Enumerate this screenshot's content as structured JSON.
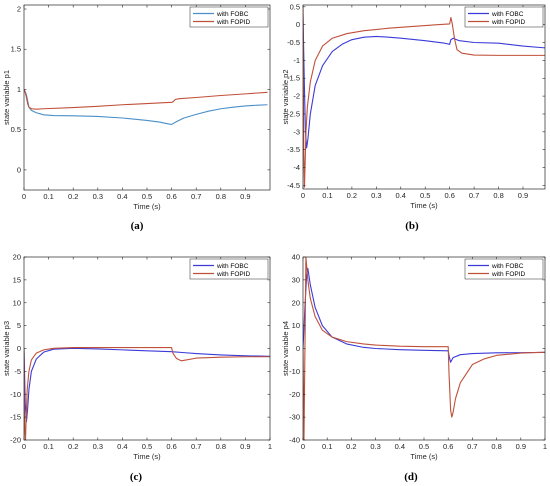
{
  "colors": {
    "fobc": "#0072BD",
    "fopid": "#A2321C",
    "axis": "#262626",
    "grid_none": "#ffffff"
  },
  "chart_data": [
    {
      "type": "line",
      "caption": "(a)",
      "xlabel": "Time (s)",
      "ylabel": "state variable p1",
      "xlim": [
        0,
        1
      ],
      "ylim": [
        -0.25,
        2.05
      ],
      "xticks": [
        0,
        0.1,
        0.2,
        0.3,
        0.4,
        0.5,
        0.6,
        0.7,
        0.8,
        0.9
      ],
      "yticks": [
        0,
        0.5,
        1,
        1.5,
        2
      ],
      "grid": false,
      "legend": "top-right",
      "series": [
        {
          "name": "with FOBC",
          "color": "#4a8fc8",
          "points": [
            [
              0,
              1.0
            ],
            [
              0.005,
              0.97
            ],
            [
              0.01,
              0.93
            ],
            [
              0.015,
              0.86
            ],
            [
              0.02,
              0.78
            ],
            [
              0.03,
              0.74
            ],
            [
              0.05,
              0.71
            ],
            [
              0.08,
              0.685
            ],
            [
              0.12,
              0.675
            ],
            [
              0.2,
              0.672
            ],
            [
              0.3,
              0.664
            ],
            [
              0.4,
              0.645
            ],
            [
              0.5,
              0.615
            ],
            [
              0.55,
              0.595
            ],
            [
              0.59,
              0.57
            ],
            [
              0.6,
              0.565
            ],
            [
              0.62,
              0.6
            ],
            [
              0.65,
              0.645
            ],
            [
              0.7,
              0.69
            ],
            [
              0.75,
              0.73
            ],
            [
              0.8,
              0.76
            ],
            [
              0.85,
              0.78
            ],
            [
              0.9,
              0.795
            ],
            [
              0.95,
              0.805
            ],
            [
              0.99,
              0.81
            ]
          ]
        },
        {
          "name": "with FOPID",
          "color": "#c0503a",
          "points": [
            [
              0,
              1.0
            ],
            [
              0.005,
              0.96
            ],
            [
              0.01,
              0.9
            ],
            [
              0.015,
              0.82
            ],
            [
              0.02,
              0.78
            ],
            [
              0.03,
              0.76
            ],
            [
              0.05,
              0.755
            ],
            [
              0.08,
              0.76
            ],
            [
              0.2,
              0.775
            ],
            [
              0.3,
              0.79
            ],
            [
              0.4,
              0.81
            ],
            [
              0.5,
              0.825
            ],
            [
              0.6,
              0.84
            ],
            [
              0.605,
              0.845
            ],
            [
              0.61,
              0.86
            ],
            [
              0.615,
              0.875
            ],
            [
              0.63,
              0.885
            ],
            [
              0.7,
              0.9
            ],
            [
              0.8,
              0.925
            ],
            [
              0.9,
              0.945
            ],
            [
              0.99,
              0.965
            ]
          ]
        }
      ]
    },
    {
      "type": "line",
      "caption": "(b)",
      "xlabel": "Time (s)",
      "ylabel": "state variable p2",
      "xlim": [
        0,
        0.99
      ],
      "ylim": [
        -4.6,
        0.55
      ],
      "xticks": [
        0,
        0.1,
        0.2,
        0.3,
        0.4,
        0.5,
        0.6,
        0.7,
        0.8,
        0.9
      ],
      "yticks": [
        -4.5,
        -4,
        -3.5,
        -3,
        -2.5,
        -2,
        -1.5,
        -1,
        -0.5,
        0,
        0.5
      ],
      "grid": false,
      "legend": "top-right",
      "series": [
        {
          "name": "with FOBC",
          "color": "#3b3bd9",
          "points": [
            [
              0,
              0.3
            ],
            [
              0.005,
              -1.5
            ],
            [
              0.01,
              -3.0
            ],
            [
              0.015,
              -3.45
            ],
            [
              0.02,
              -3.2
            ],
            [
              0.03,
              -2.5
            ],
            [
              0.05,
              -1.7
            ],
            [
              0.08,
              -1.15
            ],
            [
              0.12,
              -0.75
            ],
            [
              0.16,
              -0.55
            ],
            [
              0.2,
              -0.42
            ],
            [
              0.25,
              -0.35
            ],
            [
              0.3,
              -0.33
            ],
            [
              0.35,
              -0.35
            ],
            [
              0.4,
              -0.38
            ],
            [
              0.5,
              -0.45
            ],
            [
              0.58,
              -0.52
            ],
            [
              0.6,
              -0.55
            ],
            [
              0.605,
              -0.42
            ],
            [
              0.615,
              -0.38
            ],
            [
              0.62,
              -0.4
            ],
            [
              0.64,
              -0.45
            ],
            [
              0.7,
              -0.5
            ],
            [
              0.8,
              -0.52
            ],
            [
              0.9,
              -0.6
            ],
            [
              0.99,
              -0.65
            ]
          ]
        },
        {
          "name": "with FOPID",
          "color": "#c0503a",
          "points": [
            [
              0,
              0.5
            ],
            [
              0.003,
              -3.5
            ],
            [
              0.006,
              -4.55
            ],
            [
              0.009,
              -3.8
            ],
            [
              0.012,
              -3.0
            ],
            [
              0.018,
              -2.3
            ],
            [
              0.03,
              -1.6
            ],
            [
              0.05,
              -1.0
            ],
            [
              0.08,
              -0.6
            ],
            [
              0.12,
              -0.38
            ],
            [
              0.18,
              -0.25
            ],
            [
              0.25,
              -0.17
            ],
            [
              0.35,
              -0.1
            ],
            [
              0.45,
              -0.05
            ],
            [
              0.55,
              0.0
            ],
            [
              0.6,
              0.02
            ],
            [
              0.605,
              0.2
            ],
            [
              0.61,
              0.05
            ],
            [
              0.62,
              -0.4
            ],
            [
              0.63,
              -0.7
            ],
            [
              0.65,
              -0.8
            ],
            [
              0.7,
              -0.85
            ],
            [
              0.8,
              -0.86
            ],
            [
              0.9,
              -0.86
            ],
            [
              0.99,
              -0.86
            ]
          ]
        }
      ]
    },
    {
      "type": "line",
      "caption": "(c)",
      "xlabel": "Time (s)",
      "ylabel": "state variable p3",
      "xlim": [
        0,
        1
      ],
      "ylim": [
        -20,
        20
      ],
      "xticks": [
        0,
        0.1,
        0.2,
        0.3,
        0.4,
        0.5,
        0.6,
        0.7,
        0.8,
        0.9,
        1
      ],
      "yticks": [
        -20,
        -15,
        -10,
        -5,
        0,
        5,
        10,
        15,
        20
      ],
      "grid": false,
      "legend": "top-right",
      "series": [
        {
          "name": "with FOBC",
          "color": "#3b3bd9",
          "points": [
            [
              0,
              0
            ],
            [
              0.005,
              -12
            ],
            [
              0.01,
              -16
            ],
            [
              0.015,
              -13
            ],
            [
              0.02,
              -9
            ],
            [
              0.03,
              -5
            ],
            [
              0.05,
              -2.3
            ],
            [
              0.08,
              -0.8
            ],
            [
              0.12,
              -0.15
            ],
            [
              0.2,
              0.05
            ],
            [
              0.3,
              -0.1
            ],
            [
              0.4,
              -0.3
            ],
            [
              0.5,
              -0.5
            ],
            [
              0.6,
              -0.7
            ],
            [
              0.65,
              -0.9
            ],
            [
              0.7,
              -1.1
            ],
            [
              0.8,
              -1.4
            ],
            [
              0.9,
              -1.6
            ],
            [
              1.0,
              -1.7
            ]
          ]
        },
        {
          "name": "with FOPID",
          "color": "#c0503a",
          "points": [
            [
              0,
              0
            ],
            [
              0.003,
              -18
            ],
            [
              0.006,
              -20
            ],
            [
              0.009,
              -15
            ],
            [
              0.013,
              -9
            ],
            [
              0.02,
              -5
            ],
            [
              0.03,
              -2.5
            ],
            [
              0.05,
              -1.0
            ],
            [
              0.08,
              -0.3
            ],
            [
              0.12,
              0.05
            ],
            [
              0.2,
              0.2
            ],
            [
              0.3,
              0.2
            ],
            [
              0.4,
              0.2
            ],
            [
              0.5,
              0.2
            ],
            [
              0.6,
              0.2
            ],
            [
              0.605,
              -1.0
            ],
            [
              0.62,
              -2.2
            ],
            [
              0.64,
              -2.7
            ],
            [
              0.66,
              -2.5
            ],
            [
              0.7,
              -2.1
            ],
            [
              0.8,
              -1.9
            ],
            [
              0.9,
              -1.8
            ],
            [
              1.0,
              -1.8
            ]
          ]
        }
      ]
    },
    {
      "type": "line",
      "caption": "(d)",
      "xlabel": "Time (s)",
      "ylabel": "state variable p4",
      "xlim": [
        0,
        1
      ],
      "ylim": [
        -40,
        40
      ],
      "xticks": [
        0,
        0.1,
        0.2,
        0.3,
        0.4,
        0.5,
        0.6,
        0.7,
        0.8,
        0.9,
        1
      ],
      "yticks": [
        -40,
        -30,
        -20,
        -10,
        0,
        10,
        20,
        30,
        40
      ],
      "grid": false,
      "legend": "top-right",
      "series": [
        {
          "name": "with FOBC",
          "color": "#3b3bd9",
          "points": [
            [
              0,
              0
            ],
            [
              0.008,
              18
            ],
            [
              0.015,
              32
            ],
            [
              0.02,
              35
            ],
            [
              0.03,
              28
            ],
            [
              0.05,
              18
            ],
            [
              0.08,
              10
            ],
            [
              0.12,
              5
            ],
            [
              0.18,
              2
            ],
            [
              0.25,
              0.5
            ],
            [
              0.3,
              0
            ],
            [
              0.4,
              -0.5
            ],
            [
              0.5,
              -0.8
            ],
            [
              0.6,
              -1.0
            ],
            [
              0.605,
              -4
            ],
            [
              0.61,
              -6
            ],
            [
              0.62,
              -4
            ],
            [
              0.65,
              -2.7
            ],
            [
              0.7,
              -2.2
            ],
            [
              0.8,
              -1.9
            ],
            [
              0.9,
              -1.8
            ],
            [
              1.0,
              -1.7
            ]
          ]
        },
        {
          "name": "with FOPID",
          "color": "#c0503a",
          "points": [
            [
              0,
              0
            ],
            [
              0.004,
              -40
            ],
            [
              0.008,
              0
            ],
            [
              0.012,
              40
            ],
            [
              0.02,
              30
            ],
            [
              0.03,
              22
            ],
            [
              0.05,
              14
            ],
            [
              0.08,
              8
            ],
            [
              0.12,
              5
            ],
            [
              0.18,
              3
            ],
            [
              0.25,
              2
            ],
            [
              0.3,
              1.5
            ],
            [
              0.4,
              1.0
            ],
            [
              0.5,
              0.8
            ],
            [
              0.6,
              0.8
            ],
            [
              0.603,
              -10
            ],
            [
              0.61,
              -27
            ],
            [
              0.615,
              -30
            ],
            [
              0.62,
              -28
            ],
            [
              0.63,
              -22
            ],
            [
              0.65,
              -15
            ],
            [
              0.7,
              -7
            ],
            [
              0.75,
              -4.5
            ],
            [
              0.8,
              -3
            ],
            [
              0.9,
              -2
            ],
            [
              1.0,
              -1.6
            ]
          ]
        }
      ]
    }
  ]
}
